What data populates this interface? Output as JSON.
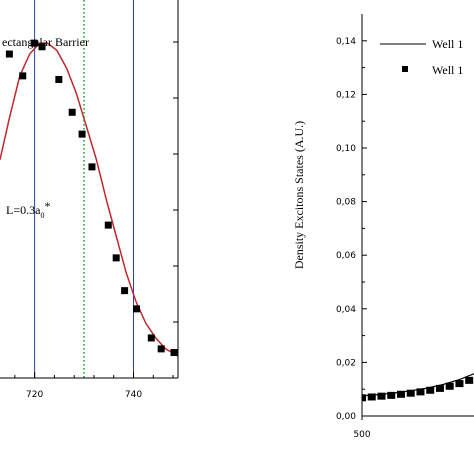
{
  "chart_data": [
    {
      "type": "scatter",
      "annotation_barrier": "ectangular Barrier",
      "annotation_L_main": "L=0.3a",
      "annotation_L_sub": "0",
      "annotation_L_tail": "*",
      "xlim": [
        713,
        749
      ],
      "ylim": [
        0,
        1
      ],
      "x_ticks": [
        720,
        740
      ],
      "x_tick_labels": [
        "720",
        "740"
      ],
      "vertical_lines": [
        {
          "x": 720,
          "style": "solid",
          "color": "#2b3fa8"
        },
        {
          "x": 730,
          "style": "dotted",
          "color": "#22aa22"
        },
        {
          "x": 740,
          "style": "solid",
          "color": "#2b3fa8"
        }
      ],
      "series": [
        {
          "style": "squares",
          "color": "#000000",
          "x": [
            714.9,
            717.6,
            719.9,
            721.5,
            724.9,
            727.6,
            729.6,
            731.6,
            734.9,
            736.5,
            738.2,
            740.6,
            743.6,
            745.6,
            748.2
          ],
          "y": [
            0.89,
            0.83,
            0.92,
            0.91,
            0.82,
            0.73,
            0.67,
            0.58,
            0.42,
            0.33,
            0.24,
            0.19,
            0.11,
            0.08,
            0.07
          ]
        },
        {
          "style": "line",
          "color": "#c0282d",
          "x": [
            713,
            715,
            717,
            719,
            721,
            722.6,
            724.5,
            726.5,
            728.5,
            730.5,
            732.5,
            734.5,
            736.5,
            738.5,
            740.5,
            742.5,
            744.5,
            746.5,
            748.5,
            749
          ],
          "y": [
            0.6,
            0.72,
            0.83,
            0.89,
            0.92,
            0.92,
            0.9,
            0.85,
            0.78,
            0.69,
            0.6,
            0.49,
            0.39,
            0.29,
            0.21,
            0.15,
            0.11,
            0.08,
            0.065,
            0.06
          ]
        }
      ]
    },
    {
      "type": "line",
      "ylabel": "Density Excitons States (A.U.)",
      "ylim": [
        0,
        0.15
      ],
      "y_ticks": [
        0.0,
        0.02,
        0.04,
        0.06,
        0.08,
        0.1,
        0.12,
        0.14
      ],
      "y_tick_labels": [
        "0,00",
        "0,02",
        "0,04",
        "0,06",
        "0,08",
        "0,10",
        "0,12",
        "0,14"
      ],
      "x_tick_labels": [
        "500"
      ],
      "xlim": [
        500,
        550
      ],
      "legend": [
        {
          "label": "Well 1",
          "marker": "line"
        },
        {
          "label": "Well 1",
          "marker": "square"
        }
      ],
      "series": [
        {
          "style": "line",
          "color": "#000000",
          "x": [
            500,
            505,
            510,
            515,
            520,
            525,
            530,
            535,
            538
          ],
          "y": [
            0.0075,
            0.008,
            0.0086,
            0.0094,
            0.0104,
            0.0118,
            0.0136,
            0.016,
            0.0178
          ]
        },
        {
          "style": "squares",
          "color": "#000000",
          "x": [
            500,
            503,
            506,
            509,
            512,
            515,
            518,
            521,
            524,
            527,
            530,
            533,
            536,
            538
          ],
          "y": [
            0.0068,
            0.0071,
            0.0074,
            0.0077,
            0.0081,
            0.0085,
            0.009,
            0.0096,
            0.0103,
            0.0111,
            0.0121,
            0.0133,
            0.0147,
            0.0158
          ]
        }
      ]
    }
  ]
}
